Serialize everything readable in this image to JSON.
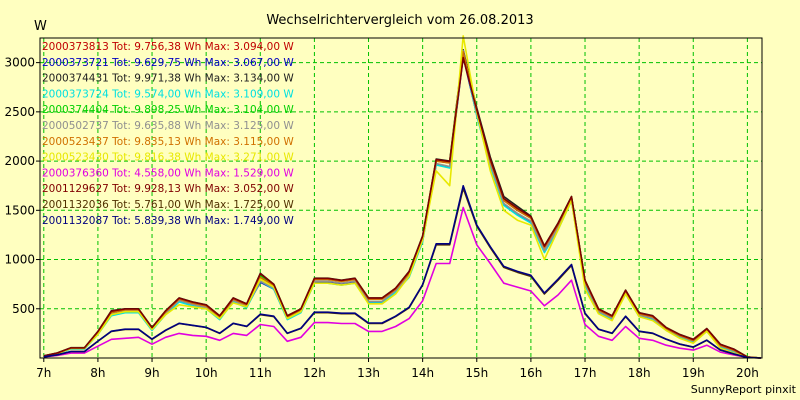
{
  "chart_data": {
    "type": "line",
    "title": "Wechselrichtervergleich vom 26.08.2013",
    "ylabel": "W",
    "xlabel": "",
    "footer": "SunnyReport pinxit",
    "ylim": [
      0,
      3250
    ],
    "yticks": [
      500,
      1000,
      1500,
      2000,
      2500,
      3000
    ],
    "xlim": [
      6.93,
      20.27
    ],
    "xticks": [
      7,
      8,
      9,
      10,
      11,
      12,
      13,
      14,
      15,
      16,
      17,
      18,
      19,
      20
    ],
    "xticklabels": [
      "7h",
      "8h",
      "9h",
      "10h",
      "11h",
      "12h",
      "13h",
      "14h",
      "15h",
      "16h",
      "17h",
      "18h",
      "19h",
      "20h"
    ],
    "grid": true,
    "grid_color": "#00c000",
    "background": "#ffffc0",
    "legend_position": "top-left",
    "x": [
      7.0,
      7.25,
      7.5,
      7.75,
      8.0,
      8.25,
      8.5,
      8.75,
      9.0,
      9.25,
      9.5,
      9.75,
      10.0,
      10.25,
      10.5,
      10.75,
      11.0,
      11.25,
      11.5,
      11.75,
      12.0,
      12.25,
      12.5,
      12.75,
      13.0,
      13.25,
      13.5,
      13.75,
      14.0,
      14.25,
      14.5,
      14.75,
      15.0,
      15.25,
      15.5,
      15.75,
      16.0,
      16.25,
      16.5,
      16.75,
      17.0,
      17.25,
      17.5,
      17.75,
      18.0,
      18.25,
      18.5,
      18.75,
      19.0,
      19.25,
      19.5,
      19.75,
      20.0,
      20.25
    ],
    "series": [
      {
        "name": "2000373813",
        "color": "#c00000",
        "tot": "9.756,38",
        "max": "3.094,00",
        "values": [
          20,
          50,
          100,
          100,
          260,
          460,
          490,
          490,
          300,
          470,
          600,
          560,
          530,
          420,
          600,
          540,
          850,
          740,
          420,
          490,
          800,
          800,
          780,
          800,
          600,
          600,
          700,
          860,
          1220,
          2000,
          1980,
          3090,
          2500,
          2000,
          1600,
          1500,
          1420,
          1120,
          1350,
          1630,
          780,
          490,
          420,
          680,
          450,
          420,
          300,
          230,
          180,
          290,
          130,
          80,
          10,
          0
        ]
      },
      {
        "name": "2000373721",
        "color": "#0000c0",
        "tot": "9.629,75",
        "max": "3.067,00",
        "values": [
          18,
          48,
          95,
          95,
          250,
          440,
          470,
          470,
          290,
          450,
          580,
          540,
          510,
          400,
          580,
          520,
          770,
          700,
          400,
          470,
          770,
          770,
          750,
          770,
          570,
          570,
          680,
          830,
          1190,
          1970,
          1940,
          3060,
          2470,
          1960,
          1560,
          1460,
          1380,
          1080,
          1310,
          1600,
          750,
          470,
          400,
          660,
          430,
          400,
          290,
          220,
          170,
          280,
          120,
          70,
          10,
          0
        ]
      },
      {
        "name": "2000374431",
        "color": "#202020",
        "tot": "9.971,38",
        "max": "3.134,00",
        "values": [
          22,
          52,
          105,
          105,
          270,
          480,
          500,
          500,
          310,
          480,
          610,
          570,
          540,
          430,
          610,
          550,
          860,
          750,
          430,
          500,
          810,
          810,
          790,
          810,
          610,
          610,
          710,
          880,
          1240,
          2020,
          2000,
          3130,
          2540,
          2040,
          1640,
          1540,
          1440,
          1140,
          1370,
          1640,
          790,
          500,
          430,
          690,
          460,
          430,
          310,
          240,
          190,
          300,
          140,
          90,
          10,
          0
        ]
      },
      {
        "name": "2000373724",
        "color": "#00e0e0",
        "tot": "9.574,00",
        "max": "3.109,00",
        "values": [
          15,
          45,
          90,
          90,
          240,
          430,
          460,
          460,
          280,
          440,
          570,
          530,
          500,
          390,
          570,
          510,
          780,
          700,
          390,
          460,
          760,
          760,
          740,
          760,
          560,
          560,
          670,
          820,
          1180,
          1960,
          1930,
          3100,
          2460,
          1950,
          1550,
          1450,
          1370,
          1070,
          1300,
          1600,
          740,
          460,
          390,
          650,
          420,
          390,
          280,
          210,
          160,
          270,
          110,
          60,
          10,
          0
        ]
      },
      {
        "name": "2000374404",
        "color": "#00d000",
        "tot": "9.898,25",
        "max": "3.104,00",
        "values": [
          20,
          50,
          102,
          102,
          265,
          470,
          495,
          495,
          305,
          475,
          605,
          565,
          535,
          425,
          605,
          545,
          840,
          745,
          425,
          495,
          805,
          805,
          785,
          805,
          605,
          605,
          705,
          870,
          1230,
          2010,
          1990,
          3100,
          2510,
          2010,
          1610,
          1510,
          1430,
          1130,
          1360,
          1635,
          785,
          495,
          425,
          685,
          455,
          425,
          305,
          235,
          185,
          295,
          135,
          85,
          10,
          0
        ]
      },
      {
        "name": "2000502737",
        "color": "#909090",
        "tot": "9.635,88",
        "max": "3.125,00",
        "values": [
          17,
          47,
          96,
          96,
          248,
          445,
          472,
          472,
          290,
          455,
          585,
          545,
          515,
          405,
          585,
          525,
          780,
          710,
          405,
          472,
          780,
          780,
          760,
          780,
          575,
          575,
          685,
          835,
          1195,
          1975,
          1945,
          3120,
          2480,
          1970,
          1570,
          1470,
          1390,
          1090,
          1320,
          1610,
          755,
          472,
          405,
          665,
          435,
          405,
          292,
          222,
          172,
          282,
          122,
          72,
          10,
          0
        ]
      },
      {
        "name": "2000523437",
        "color": "#d07000",
        "tot": "9.835,13",
        "max": "3.115,00",
        "values": [
          19,
          49,
          100,
          100,
          258,
          462,
          490,
          490,
          300,
          468,
          598,
          558,
          528,
          418,
          598,
          538,
          820,
          735,
          418,
          488,
          798,
          798,
          778,
          798,
          598,
          598,
          698,
          862,
          1222,
          2002,
          1982,
          3110,
          2502,
          2002,
          1602,
          1502,
          1422,
          1122,
          1352,
          1628,
          778,
          488,
          418,
          678,
          448,
          418,
          298,
          228,
          178,
          288,
          128,
          78,
          10,
          0
        ]
      },
      {
        "name": "2000523430",
        "color": "#e8e800",
        "tot": "9.816,38",
        "max": "3.271,00",
        "values": [
          16,
          45,
          98,
          98,
          240,
          440,
          470,
          470,
          290,
          440,
          540,
          520,
          500,
          400,
          560,
          520,
          800,
          720,
          400,
          470,
          760,
          760,
          740,
          760,
          550,
          550,
          650,
          830,
          1200,
          1900,
          1750,
          3271,
          2500,
          1900,
          1500,
          1400,
          1350,
          1000,
          1300,
          1600,
          700,
          450,
          380,
          650,
          420,
          380,
          280,
          200,
          150,
          270,
          100,
          50,
          10,
          0
        ]
      },
      {
        "name": "2000376360",
        "color": "#e000e0",
        "tot": "4.558,00",
        "max": "1.529,00",
        "values": [
          10,
          25,
          50,
          50,
          120,
          190,
          200,
          210,
          140,
          210,
          250,
          230,
          220,
          180,
          250,
          230,
          340,
          320,
          170,
          210,
          360,
          360,
          350,
          350,
          270,
          270,
          320,
          400,
          580,
          960,
          960,
          1529,
          1150,
          960,
          760,
          720,
          680,
          530,
          640,
          790,
          340,
          220,
          180,
          320,
          200,
          180,
          130,
          100,
          80,
          130,
          60,
          30,
          5,
          0
        ]
      },
      {
        "name": "2001129627",
        "color": "#800000",
        "tot": "9.928,13",
        "max": "3.052,00",
        "values": [
          21,
          51,
          103,
          103,
          268,
          475,
          498,
          498,
          308,
          478,
          608,
          568,
          538,
          428,
          608,
          548,
          855,
          748,
          428,
          498,
          808,
          808,
          788,
          808,
          608,
          608,
          708,
          875,
          1235,
          2015,
          1995,
          3050,
          2520,
          2020,
          1620,
          1520,
          1435,
          1135,
          1365,
          1638,
          788,
          498,
          428,
          688,
          458,
          428,
          308,
          238,
          188,
          298,
          138,
          88,
          10,
          0
        ]
      },
      {
        "name": "2001132036",
        "color": "#503000",
        "tot": "5.761,00",
        "max": "1.725,00",
        "values": [
          12,
          32,
          65,
          65,
          170,
          270,
          290,
          290,
          190,
          280,
          350,
          330,
          310,
          250,
          350,
          320,
          440,
          420,
          250,
          300,
          460,
          460,
          450,
          450,
          350,
          350,
          420,
          510,
          740,
          1150,
          1150,
          1725,
          1340,
          1120,
          920,
          870,
          830,
          650,
          790,
          940,
          450,
          290,
          250,
          420,
          270,
          250,
          190,
          140,
          110,
          180,
          80,
          40,
          5,
          0
        ]
      },
      {
        "name": "2001132087",
        "color": "#000080",
        "tot": "5.839,38",
        "max": "1.749,00",
        "values": [
          12,
          33,
          66,
          66,
          172,
          272,
          292,
          292,
          192,
          282,
          352,
          332,
          312,
          252,
          352,
          322,
          445,
          425,
          252,
          302,
          465,
          465,
          455,
          455,
          355,
          355,
          425,
          515,
          745,
          1160,
          1160,
          1749,
          1350,
          1130,
          930,
          880,
          840,
          660,
          800,
          950,
          455,
          292,
          252,
          425,
          272,
          252,
          192,
          142,
          112,
          182,
          82,
          42,
          5,
          0
        ]
      }
    ]
  }
}
